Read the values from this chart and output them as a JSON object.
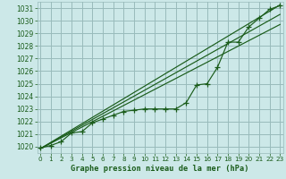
{
  "title": "Graphe pression niveau de la mer (hPa)",
  "hours": [
    0,
    1,
    2,
    3,
    4,
    5,
    6,
    7,
    8,
    9,
    10,
    11,
    12,
    13,
    14,
    15,
    16,
    17,
    18,
    19,
    20,
    21,
    22,
    23
  ],
  "main_data": [
    1019.9,
    1020.1,
    1020.4,
    1021.1,
    1021.2,
    1021.9,
    1022.2,
    1022.5,
    1022.8,
    1022.9,
    1023.0,
    1023.0,
    1023.0,
    1023.0,
    1023.5,
    1024.9,
    1025.0,
    1026.3,
    1028.3,
    1028.3,
    1029.5,
    1030.2,
    1030.9,
    1031.2
  ],
  "ylim": [
    1019.5,
    1031.5
  ],
  "xlim": [
    -0.3,
    23.3
  ],
  "bg_color": "#cce8e8",
  "grid_color": "#99bbbb",
  "line_color": "#1a5c1a",
  "tick_label_color": "#1a5c1a",
  "title_color": "#1a5c1a",
  "yticks": [
    1020,
    1021,
    1022,
    1023,
    1024,
    1025,
    1026,
    1027,
    1028,
    1029,
    1030,
    1031
  ],
  "xticks": [
    0,
    1,
    2,
    3,
    4,
    5,
    6,
    7,
    8,
    9,
    10,
    11,
    12,
    13,
    14,
    15,
    16,
    17,
    18,
    19,
    20,
    21,
    22,
    23
  ],
  "trend_lines": [
    [
      1019.85,
      1031.25
    ],
    [
      1019.85,
      1030.5
    ],
    [
      1019.85,
      1029.7
    ]
  ]
}
